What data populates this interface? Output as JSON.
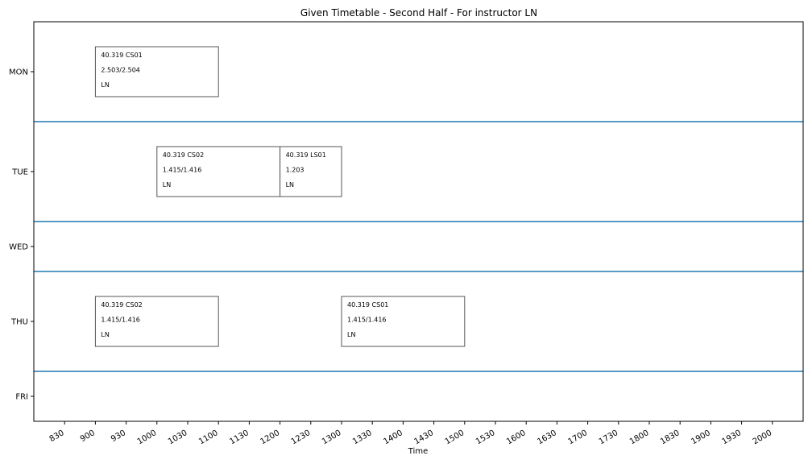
{
  "chart_data": {
    "type": "timetable",
    "title": "Given Timetable - Second Half - For instructor LN",
    "xlabel": "Time",
    "ylabel": "",
    "xlim": [
      800,
      2030
    ],
    "x_ticks": [
      "830",
      "900",
      "930",
      "1000",
      "1030",
      "1100",
      "1130",
      "1200",
      "1230",
      "1300",
      "1330",
      "1400",
      "1430",
      "1500",
      "1530",
      "1600",
      "1630",
      "1700",
      "1730",
      "1800",
      "1830",
      "1900",
      "1930",
      "2000"
    ],
    "days": [
      "MON",
      "TUE",
      "WED",
      "THU",
      "FRI"
    ],
    "grid": false,
    "separator_color": "#1f77b4",
    "entries": [
      {
        "day": "MON",
        "start": "900",
        "end": "1100",
        "course": "40.319 CS01",
        "room": "2.503/2.504",
        "instructor": "LN"
      },
      {
        "day": "TUE",
        "start": "1000",
        "end": "1200",
        "course": "40.319 CS02",
        "room": "1.415/1.416",
        "instructor": "LN"
      },
      {
        "day": "TUE",
        "start": "1200",
        "end": "1300",
        "course": "40.319 LS01",
        "room": "1.203",
        "instructor": "LN"
      },
      {
        "day": "THU",
        "start": "900",
        "end": "1100",
        "course": "40.319 CS02",
        "room": "1.415/1.416",
        "instructor": "LN"
      },
      {
        "day": "THU",
        "start": "1300",
        "end": "1500",
        "course": "40.319 CS01",
        "room": "1.415/1.416",
        "instructor": "LN"
      }
    ]
  }
}
